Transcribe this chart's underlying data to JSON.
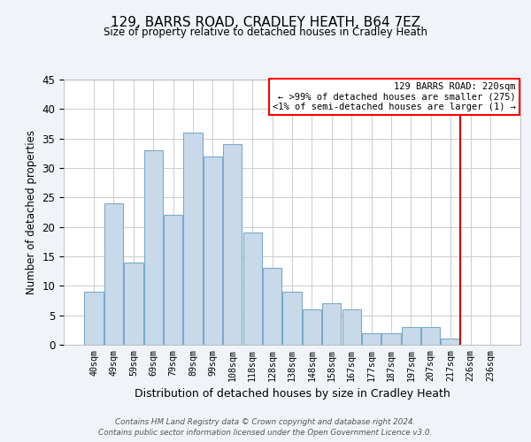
{
  "title": "129, BARRS ROAD, CRADLEY HEATH, B64 7EZ",
  "subtitle": "Size of property relative to detached houses in Cradley Heath",
  "xlabel": "Distribution of detached houses by size in Cradley Heath",
  "ylabel": "Number of detached properties",
  "bar_color": "#c8daea",
  "bar_edge_color": "#7aaac8",
  "categories": [
    "40sqm",
    "49sqm",
    "59sqm",
    "69sqm",
    "79sqm",
    "89sqm",
    "99sqm",
    "108sqm",
    "118sqm",
    "128sqm",
    "138sqm",
    "148sqm",
    "158sqm",
    "167sqm",
    "177sqm",
    "187sqm",
    "197sqm",
    "207sqm",
    "217sqm",
    "226sqm",
    "236sqm"
  ],
  "values": [
    9,
    24,
    14,
    33,
    22,
    36,
    32,
    34,
    19,
    13,
    9,
    6,
    7,
    6,
    2,
    2,
    3,
    3,
    1,
    0,
    0
  ],
  "ylim": [
    0,
    45
  ],
  "yticks": [
    0,
    5,
    10,
    15,
    20,
    25,
    30,
    35,
    40,
    45
  ],
  "property_line_x": 18.5,
  "property_line_color": "#cc0000",
  "legend_title": "129 BARRS ROAD: 220sqm",
  "legend_line1": "← >99% of detached houses are smaller (275)",
  "legend_line2": "<1% of semi-detached houses are larger (1) →",
  "footer_line1": "Contains HM Land Registry data © Crown copyright and database right 2024.",
  "footer_line2": "Contains public sector information licensed under the Open Government Licence v3.0.",
  "background_color": "#f0f4f8",
  "plot_background_color": "#ffffff",
  "grid_color": "#cccccc"
}
